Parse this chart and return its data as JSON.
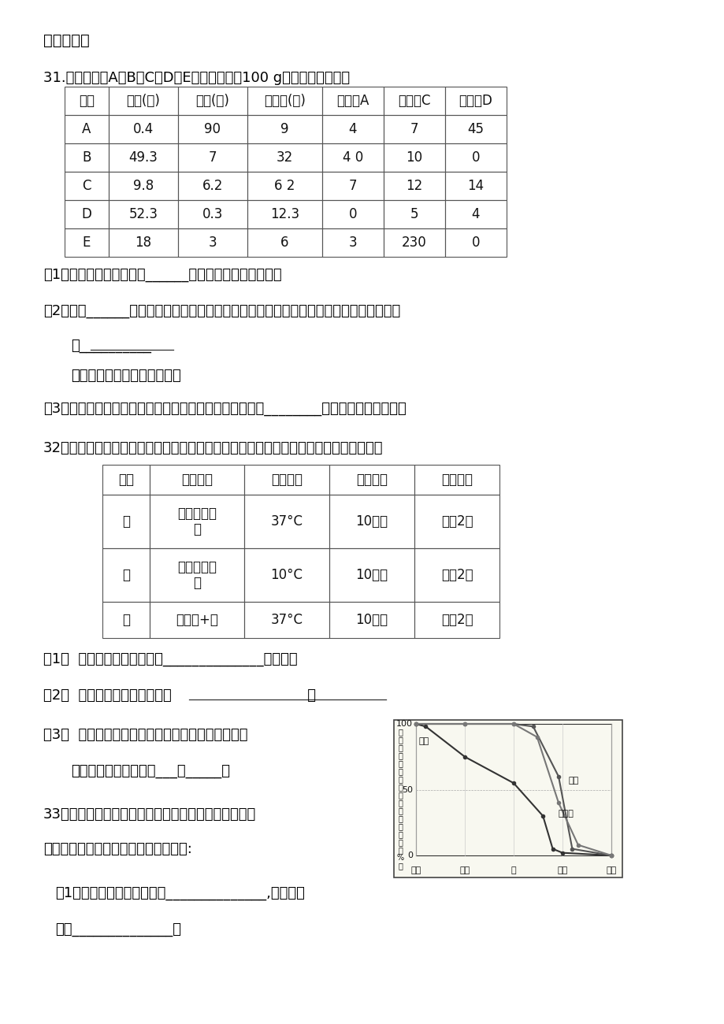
{
  "title_section": "四、简答题",
  "q31_intro": "31.下表列出了A、B、C、D、E五种食物（各100 g）的重要营养成分",
  "table1_headers": [
    "食物",
    "糖类(克)",
    "脂肪(克)",
    "蛋白质(克)",
    "维生素A",
    "维生素C",
    "维生素D"
  ],
  "table1_rows": [
    [
      "A",
      "0.4",
      "90",
      "9",
      "4",
      "7",
      "45"
    ],
    [
      "B",
      "49.3",
      "7",
      "32",
      "4 0",
      "10",
      "0"
    ],
    [
      "C",
      "9.8",
      "6.2",
      "6 2",
      "7",
      "12",
      "14"
    ],
    [
      "D",
      "52.3",
      "0.3",
      "12.3",
      "0",
      "5",
      "4"
    ],
    [
      "E",
      "18",
      "3",
      "6",
      "3",
      "230",
      "0"
    ]
  ],
  "q31_1": "（1）根据上表可知，食物______有助于坏血病患者食用。",
  "q31_2a": "（2）食物______有助于小朋友避免佝偻病。避免小朋友佝偻病、老人骨质疏松症还应多吃",
  "q31_2b": "含__________",
  "q31_2c": "（一种无机盐）丰富的食物。",
  "q31_3": "（3）食物中人体必需的营养成分在上表中还没有列出的有________、无机盐和纤维素等。",
  "q32_intro": "32．某同窗对口腔中的化学性消化进行了如下探究，请根据这位同窗设计的实验回答问题",
  "table2_headers": [
    "编号",
    "加入物质",
    "水浴温度",
    "水浴时间",
    "鉴定试剂"
  ],
  "table2_rows": [
    [
      "甲",
      "馒头屑＋唾\n液",
      "37°C",
      "10分钟",
      "碘液2滴"
    ],
    [
      "乙",
      "馒头屑＋唾\n液",
      "10°C",
      "10分钟",
      "碘液2滴"
    ],
    [
      "丙",
      "馒头屑+水",
      "37°C",
      "10分钟",
      "碘液2滴"
    ]
  ],
  "q32_1": "（1）  滴加碘液后显蓝色的是______________组实验。",
  "q32_2": "（2）  甲、丙两组实验的变量是                              。",
  "q32_3a": "（3）  由以上的实验现象可以得出淀粉被消化时不可",
  "q32_3b": "缺少的条件是唾液中的___和_____。",
  "q33_intro": "33．右图表达淀粉、脂肪和蛋白质在消化道各器官中的",
  "q33_intro2": "消化状况，分析图中信息回答如下问题:",
  "q33_1a": "（1）淀粉开始消化的部位是______________,最后被分",
  "q33_1b": "解成______________。",
  "background_color": "#ffffff",
  "text_color": "#000000"
}
